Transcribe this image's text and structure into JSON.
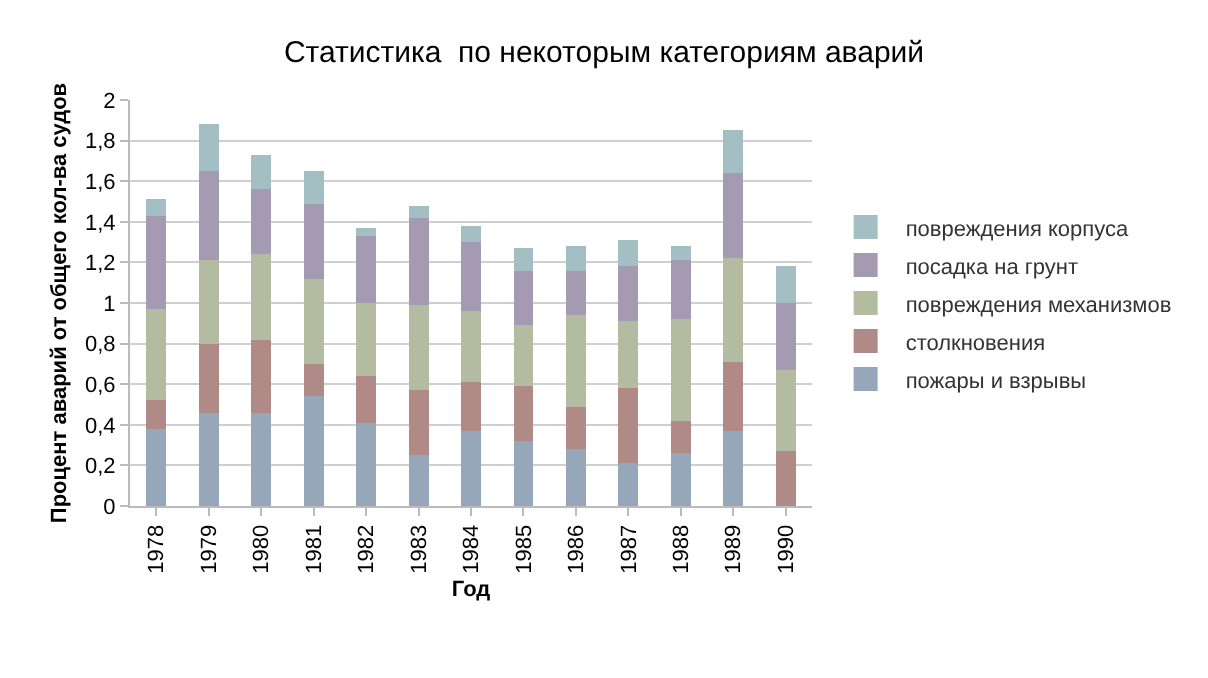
{
  "chart_data": {
    "type": "bar",
    "stacked": true,
    "title": "Статистика  по некоторым категориям аварий",
    "xlabel": "Год",
    "ylabel": "Процент аварий от общего кол-ва судов",
    "categories": [
      "1978",
      "1979",
      "1980",
      "1981",
      "1982",
      "1983",
      "1984",
      "1985",
      "1986",
      "1987",
      "1988",
      "1989",
      "1990"
    ],
    "series": [
      {
        "name": "пожары и взрывы",
        "color": "#95a7b8",
        "values": [
          0.38,
          0.46,
          0.46,
          0.54,
          0.41,
          0.25,
          0.37,
          0.32,
          0.28,
          0.21,
          0.26,
          0.37,
          0
        ]
      },
      {
        "name": "столкновения",
        "color": "#b08a86",
        "values": [
          0.14,
          0.34,
          0.36,
          0.16,
          0.23,
          0.32,
          0.24,
          0.27,
          0.21,
          0.37,
          0.16,
          0.34,
          0.27
        ]
      },
      {
        "name": "повреждения механизмов",
        "color": "#b3bca0",
        "values": [
          0.45,
          0.41,
          0.42,
          0.42,
          0.36,
          0.42,
          0.35,
          0.3,
          0.45,
          0.33,
          0.5,
          0.51,
          0.4
        ]
      },
      {
        "name": "посадка на грунт",
        "color": "#a49bb2",
        "values": [
          0.46,
          0.44,
          0.32,
          0.37,
          0.33,
          0.43,
          0.34,
          0.27,
          0.22,
          0.27,
          0.29,
          0.42,
          0.33
        ]
      },
      {
        "name": "повреждения корпуса",
        "color": "#a4bfc4",
        "values": [
          0.08,
          0.23,
          0.17,
          0.16,
          0.04,
          0.06,
          0.08,
          0.11,
          0.12,
          0.13,
          0.07,
          0.21,
          0.18
        ]
      }
    ],
    "ylim": [
      0,
      2
    ],
    "yticks": [
      {
        "value": 0,
        "label": "0"
      },
      {
        "value": 0.2,
        "label": "0,2"
      },
      {
        "value": 0.4,
        "label": "0,4"
      },
      {
        "value": 0.6,
        "label": "0,6"
      },
      {
        "value": 0.8,
        "label": "0,8"
      },
      {
        "value": 1,
        "label": "1"
      },
      {
        "value": 1.2,
        "label": "1,2"
      },
      {
        "value": 1.4,
        "label": "1,4"
      },
      {
        "value": 1.6,
        "label": "1,6"
      },
      {
        "value": 1.8,
        "label": "1,8"
      },
      {
        "value": 2,
        "label": "2"
      }
    ],
    "grid": "y",
    "legend": "right"
  }
}
